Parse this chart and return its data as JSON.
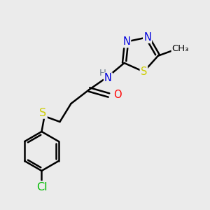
{
  "bg_color": "#ebebeb",
  "atom_colors": {
    "C": "#000000",
    "N": "#0000dd",
    "O": "#ff0000",
    "S": "#cccc00",
    "Cl": "#00bb00",
    "H": "#708090"
  },
  "bond_color": "#000000",
  "bond_width": 1.8,
  "font_size": 10.5
}
